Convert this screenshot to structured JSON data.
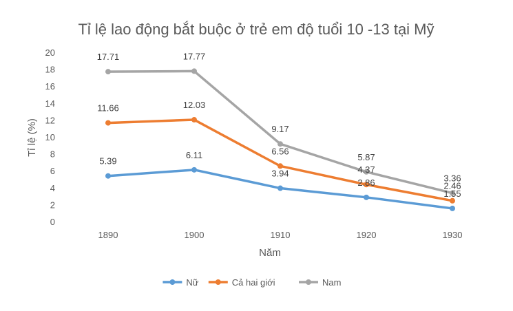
{
  "chart_data": {
    "type": "line",
    "title": "Tỉ lệ lao động bắt buộc ở trẻ em độ tuổi 10 -13 tại Mỹ",
    "xlabel": "Năm",
    "ylabel": "Tỉ lệ (%)",
    "categories": [
      "1890",
      "1900",
      "1910",
      "1920",
      "1930"
    ],
    "ylim": [
      0,
      20
    ],
    "ytick_step": 2,
    "yticks": [
      "0",
      "2",
      "4",
      "6",
      "8",
      "10",
      "12",
      "14",
      "16",
      "18",
      "20"
    ],
    "grid": false,
    "legend_position": "bottom",
    "series": [
      {
        "name": "Nữ",
        "color": "#5b9bd5",
        "values": [
          5.39,
          6.11,
          3.94,
          2.86,
          1.55
        ],
        "labels": [
          "5.39",
          "6.11",
          "3.94",
          "2.86",
          "1.55"
        ]
      },
      {
        "name": "Cả hai giới",
        "color": "#ed7d31",
        "values": [
          11.66,
          12.03,
          6.56,
          4.37,
          2.46
        ],
        "labels": [
          "11.66",
          "12.03",
          "6.56",
          "4.37",
          "2.46"
        ]
      },
      {
        "name": "Nam",
        "color": "#a5a5a5",
        "values": [
          17.71,
          17.77,
          9.17,
          5.87,
          3.36
        ],
        "labels": [
          "17.71",
          "17.77",
          "9.17",
          "5.87",
          "3.36"
        ]
      }
    ]
  }
}
